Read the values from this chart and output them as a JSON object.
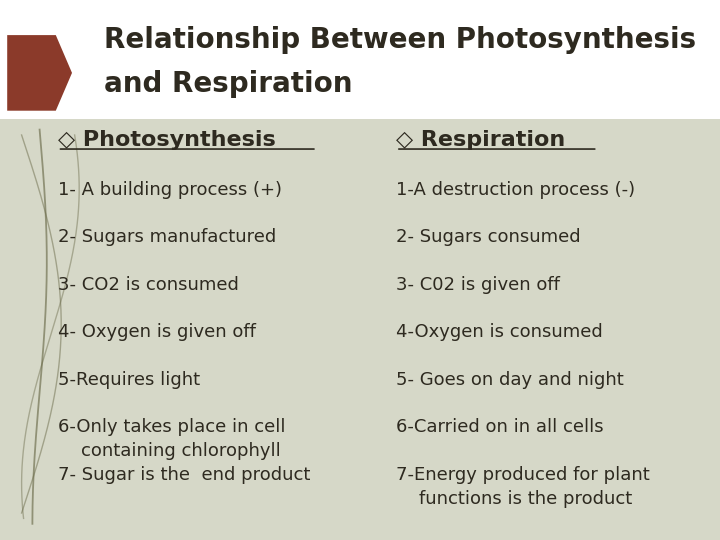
{
  "title_line1": "Relationship Between Photosynthesis",
  "title_line2": "and Respiration",
  "bg_color": "#d6d8c8",
  "title_bg": "#ffffff",
  "arrow_color": "#8b3a2a",
  "text_color": "#2e2a20",
  "left_header": "◇ Photosynthesis",
  "right_header": "◇ Respiration",
  "left_items": [
    "1- A building process (+)",
    "2- Sugars manufactured",
    "3- CO2 is consumed",
    "4- Oxygen is given off",
    "5-Requires light",
    "6-Only takes place in cell\n    containing chlorophyll",
    "7- Sugar is the  end product"
  ],
  "right_items": [
    "1-A destruction process (-)",
    "2- Sugars consumed",
    "3- C02 is given off",
    "4-Oxygen is consumed",
    "5- Goes on day and night",
    "6-Carried on in all cells",
    "7-Energy produced for plant\n    functions is the product"
  ],
  "title_fontsize": 20,
  "header_fontsize": 16,
  "item_fontsize": 13,
  "vine_color": "#6b6b4a"
}
